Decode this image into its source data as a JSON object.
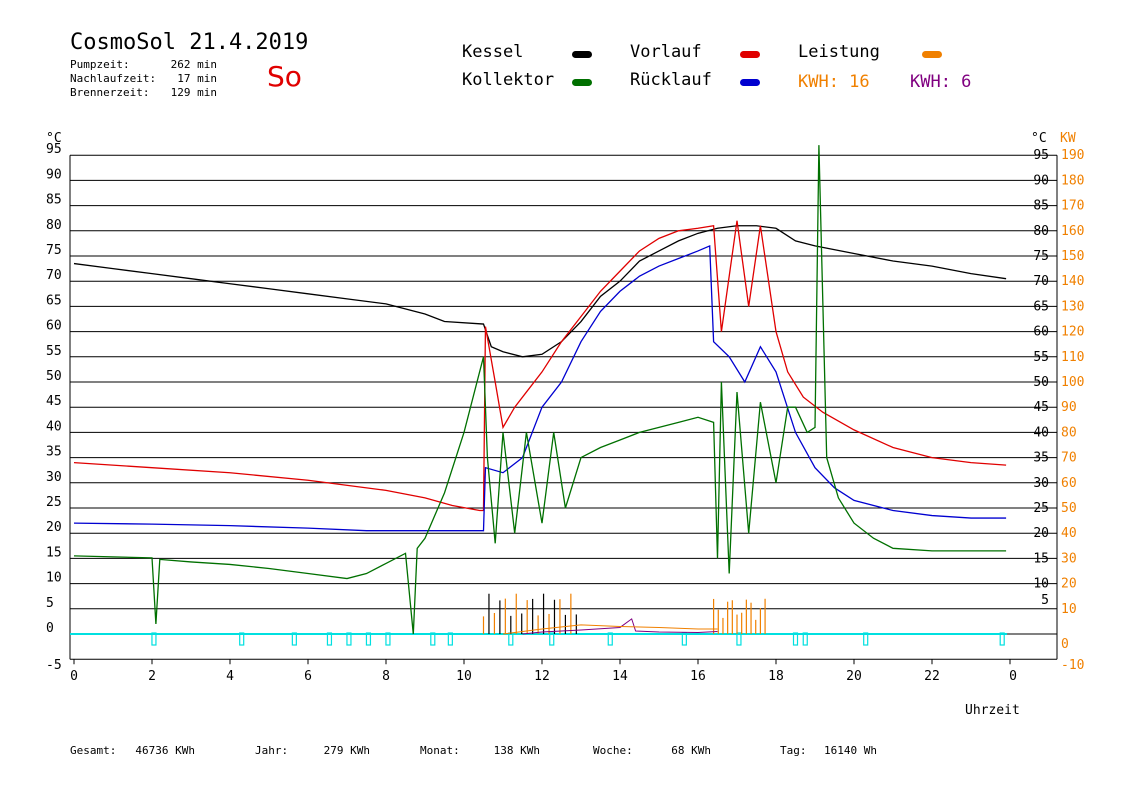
{
  "header": {
    "title": "CosmoSol 21.4.2019",
    "day": "So",
    "stats": [
      {
        "label": "Pumpzeit:",
        "value": "262 min"
      },
      {
        "label": "Nachlaufzeit:",
        "value": "17 min"
      },
      {
        "label": "Brennerzeit:",
        "value": "129 min"
      }
    ]
  },
  "legend": {
    "items": [
      {
        "name": "Kessel",
        "color": "#000000"
      },
      {
        "name": "Vorlauf",
        "color": "#e00000"
      },
      {
        "name": "Leistung",
        "color": "#f08000"
      },
      {
        "name": "Kollektor",
        "color": "#007000"
      },
      {
        "name": "Rücklauf",
        "color": "#0000d0"
      }
    ],
    "kwh1": "KWH: 16",
    "kwh2": "KWH: 6",
    "kwh1_color": "#f08000",
    "kwh2_color": "#800080"
  },
  "axes": {
    "left_unit": "°C",
    "right_unit": "°C",
    "right2_unit": "KW",
    "xlabel": "Uhrzeit",
    "x_ticks": [
      "0",
      "2",
      "4",
      "6",
      "8",
      "10",
      "12",
      "14",
      "16",
      "18",
      "20",
      "22",
      "0"
    ],
    "y_left_ticks": [
      "-5",
      "0",
      "5",
      "10",
      "15",
      "20",
      "25",
      "30",
      "35",
      "40",
      "45",
      "50",
      "55",
      "60",
      "65",
      "70",
      "75",
      "80",
      "85",
      "90",
      "95"
    ],
    "y_right_ticks": [
      "5",
      "10",
      "15",
      "20",
      "25",
      "30",
      "35",
      "40",
      "45",
      "50",
      "55",
      "60",
      "65",
      "70",
      "75",
      "80",
      "85",
      "90",
      "95"
    ],
    "y_kw_ticks": [
      "-10",
      "0",
      "10",
      "20",
      "30",
      "40",
      "50",
      "60",
      "70",
      "80",
      "90",
      "100",
      "110",
      "120",
      "130",
      "140",
      "150",
      "160",
      "170",
      "180",
      "190"
    ]
  },
  "totals": [
    {
      "label": "Gesamt:",
      "value": "46736 KWh"
    },
    {
      "label": "Jahr:",
      "value": "279 KWh"
    },
    {
      "label": "Monat:",
      "value": "138 KWh"
    },
    {
      "label": "Woche:",
      "value": "68 KWh"
    },
    {
      "label": "Tag:",
      "value": "16140 Wh"
    }
  ],
  "chart_data": {
    "type": "line",
    "xlabel": "Uhrzeit",
    "ylabel": "°C",
    "xlim": [
      0,
      24
    ],
    "ylim": [
      -5,
      95
    ],
    "grid": true,
    "legend_position": "top",
    "series": [
      {
        "name": "Kessel",
        "color": "#000000",
        "points": [
          [
            0,
            73.5
          ],
          [
            1,
            72.5
          ],
          [
            2,
            71.5
          ],
          [
            3,
            70.5
          ],
          [
            4,
            69.5
          ],
          [
            5,
            68.5
          ],
          [
            6,
            67.5
          ],
          [
            7,
            66.5
          ],
          [
            8,
            65.5
          ],
          [
            9,
            63.5
          ],
          [
            9.5,
            62
          ],
          [
            10.5,
            61.5
          ],
          [
            10.7,
            57
          ],
          [
            11,
            56
          ],
          [
            11.5,
            55
          ],
          [
            12,
            55.5
          ],
          [
            12.5,
            58
          ],
          [
            13,
            62
          ],
          [
            13.5,
            67
          ],
          [
            14,
            70
          ],
          [
            14.5,
            74
          ],
          [
            15,
            76
          ],
          [
            15.5,
            78
          ],
          [
            16,
            79.5
          ],
          [
            16.5,
            80.5
          ],
          [
            17,
            81
          ],
          [
            17.5,
            81
          ],
          [
            18,
            80.5
          ],
          [
            18.5,
            78
          ],
          [
            19,
            77
          ],
          [
            20,
            75.5
          ],
          [
            21,
            74
          ],
          [
            22,
            73
          ],
          [
            23,
            71.5
          ],
          [
            23.9,
            70.5
          ]
        ]
      },
      {
        "name": "Vorlauf",
        "color": "#e00000",
        "points": [
          [
            0,
            34
          ],
          [
            2,
            33
          ],
          [
            4,
            32
          ],
          [
            6,
            30.5
          ],
          [
            8,
            28.5
          ],
          [
            9,
            27
          ],
          [
            9.7,
            25.5
          ],
          [
            10.4,
            24.5
          ],
          [
            10.5,
            24.5
          ],
          [
            10.55,
            61
          ],
          [
            10.8,
            50
          ],
          [
            11,
            41
          ],
          [
            11.3,
            45
          ],
          [
            11.6,
            48
          ],
          [
            12,
            52
          ],
          [
            12.5,
            58
          ],
          [
            13,
            63
          ],
          [
            13.5,
            68
          ],
          [
            14,
            72
          ],
          [
            14.5,
            76
          ],
          [
            15,
            78.5
          ],
          [
            15.5,
            80
          ],
          [
            16,
            80.5
          ],
          [
            16.4,
            81
          ],
          [
            16.6,
            60
          ],
          [
            17,
            82
          ],
          [
            17.3,
            65
          ],
          [
            17.6,
            81
          ],
          [
            18,
            60
          ],
          [
            18.3,
            52
          ],
          [
            18.7,
            47
          ],
          [
            19.2,
            44
          ],
          [
            20,
            40.5
          ],
          [
            21,
            37
          ],
          [
            22,
            35
          ],
          [
            23,
            34
          ],
          [
            23.9,
            33.5
          ]
        ]
      },
      {
        "name": "Rücklauf",
        "color": "#0000d0",
        "points": [
          [
            0,
            22
          ],
          [
            2,
            21.8
          ],
          [
            4,
            21.5
          ],
          [
            6,
            21
          ],
          [
            7.5,
            20.5
          ],
          [
            9,
            20.5
          ],
          [
            10.5,
            20.5
          ],
          [
            10.55,
            33
          ],
          [
            11,
            32
          ],
          [
            11.5,
            35
          ],
          [
            12,
            45
          ],
          [
            12.5,
            50
          ],
          [
            13,
            58
          ],
          [
            13.5,
            64
          ],
          [
            14,
            68
          ],
          [
            14.5,
            71
          ],
          [
            15,
            73
          ],
          [
            15.5,
            74.5
          ],
          [
            16,
            76
          ],
          [
            16.3,
            77
          ],
          [
            16.4,
            58
          ],
          [
            16.8,
            55
          ],
          [
            17.2,
            50
          ],
          [
            17.6,
            57
          ],
          [
            18,
            52
          ],
          [
            18.5,
            40
          ],
          [
            19,
            33
          ],
          [
            19.5,
            29
          ],
          [
            20,
            26.5
          ],
          [
            21,
            24.5
          ],
          [
            22,
            23.5
          ],
          [
            23,
            23
          ],
          [
            23.9,
            23
          ]
        ]
      },
      {
        "name": "Kollektor",
        "color": "#007000",
        "points": [
          [
            0,
            15.5
          ],
          [
            1,
            15.3
          ],
          [
            2,
            15.1
          ],
          [
            2.1,
            2
          ],
          [
            2.2,
            14.8
          ],
          [
            3,
            14.3
          ],
          [
            4,
            13.8
          ],
          [
            5,
            13
          ],
          [
            6,
            12
          ],
          [
            7,
            11
          ],
          [
            7.5,
            12
          ],
          [
            8,
            14
          ],
          [
            8.5,
            16
          ],
          [
            8.7,
            0
          ],
          [
            8.8,
            17
          ],
          [
            9,
            19
          ],
          [
            9.5,
            28
          ],
          [
            10,
            40
          ],
          [
            10.5,
            55
          ],
          [
            10.6,
            35
          ],
          [
            10.8,
            18
          ],
          [
            11,
            40
          ],
          [
            11.3,
            20
          ],
          [
            11.6,
            40
          ],
          [
            12,
            22
          ],
          [
            12.3,
            40
          ],
          [
            12.6,
            25
          ],
          [
            13,
            35
          ],
          [
            13.5,
            37
          ],
          [
            14,
            38.5
          ],
          [
            14.5,
            40
          ],
          [
            15,
            41
          ],
          [
            15.5,
            42
          ],
          [
            16,
            43
          ],
          [
            16.4,
            42
          ],
          [
            16.5,
            15
          ],
          [
            16.6,
            50
          ],
          [
            16.8,
            12
          ],
          [
            17,
            48
          ],
          [
            17.3,
            20
          ],
          [
            17.6,
            46
          ],
          [
            18,
            30
          ],
          [
            18.3,
            45
          ],
          [
            18.5,
            45
          ],
          [
            18.8,
            40
          ],
          [
            19,
            41
          ],
          [
            19.1,
            97
          ],
          [
            19.3,
            35
          ],
          [
            19.6,
            27
          ],
          [
            20,
            22
          ],
          [
            20.5,
            19
          ],
          [
            21,
            17
          ],
          [
            22,
            16.5
          ],
          [
            23,
            16.5
          ],
          [
            23.9,
            16.5
          ]
        ]
      }
    ]
  }
}
